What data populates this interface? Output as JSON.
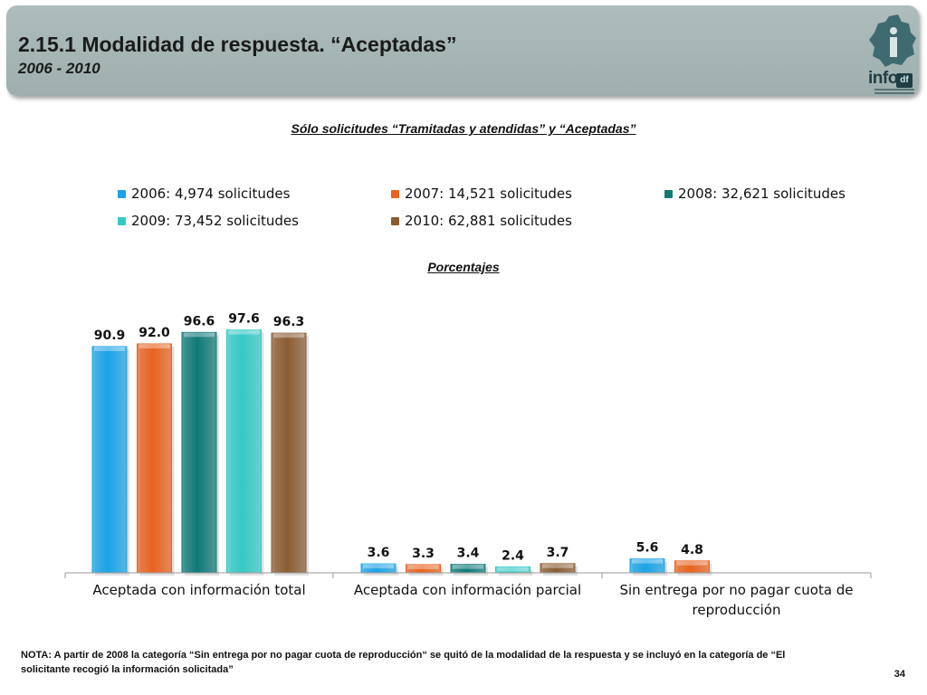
{
  "header": {
    "title": "2.15.1 Modalidad de respuesta. “Aceptadas”",
    "subtitle": "2006 - 2010",
    "logo_text": "info",
    "logo_tag": "df"
  },
  "chart_heading": "Sólo solicitudes “Tramitadas y atendidas” y “Aceptadas”",
  "units_label": "Porcentajes",
  "chart_data": {
    "type": "bar",
    "categories": [
      "Aceptada con información total",
      "Aceptada con información parcial",
      "Sin entrega por no pagar cuota de reproducción"
    ],
    "category_lines": [
      [
        "Aceptada con información total"
      ],
      [
        "Aceptada con información parcial"
      ],
      [
        "Sin entrega por no pagar cuota de",
        "reproducción"
      ]
    ],
    "series": [
      {
        "name": "2006: 4,974 solicitudes",
        "color": "#1aa3e6",
        "values": [
          90.9,
          3.6,
          5.6
        ]
      },
      {
        "name": "2007: 14,521 solicitudes",
        "color": "#e8631f",
        "values": [
          92.0,
          3.3,
          4.8
        ]
      },
      {
        "name": "2008: 32,621 solicitudes",
        "color": "#0f7a78",
        "values": [
          96.6,
          3.4,
          null
        ]
      },
      {
        "name": "2009: 73,452 solicitudes",
        "color": "#35c9c5",
        "values": [
          97.6,
          2.4,
          null
        ]
      },
      {
        "name": "2010: 62,881 solicitudes",
        "color": "#8a5c33",
        "values": [
          96.3,
          3.7,
          null
        ]
      }
    ],
    "value_labels": [
      [
        "90.9",
        "3.6",
        "5.6"
      ],
      [
        "92.0",
        "3.3",
        "4.8"
      ],
      [
        "96.6",
        "3.4",
        ""
      ],
      [
        "97.6",
        "2.4",
        ""
      ],
      [
        "96.3",
        "3.7",
        ""
      ]
    ],
    "ylim": [
      0,
      100
    ],
    "legend_position": "top",
    "grid": false
  },
  "note": "NOTA: A partir de 2008 la categoría “Sin entrega por no pagar cuota de reproducción“ se quitó de la modalidad de la respuesta y se incluyó en la categoría de “El solicitante recogió la información solicitada”",
  "page_number": "34"
}
